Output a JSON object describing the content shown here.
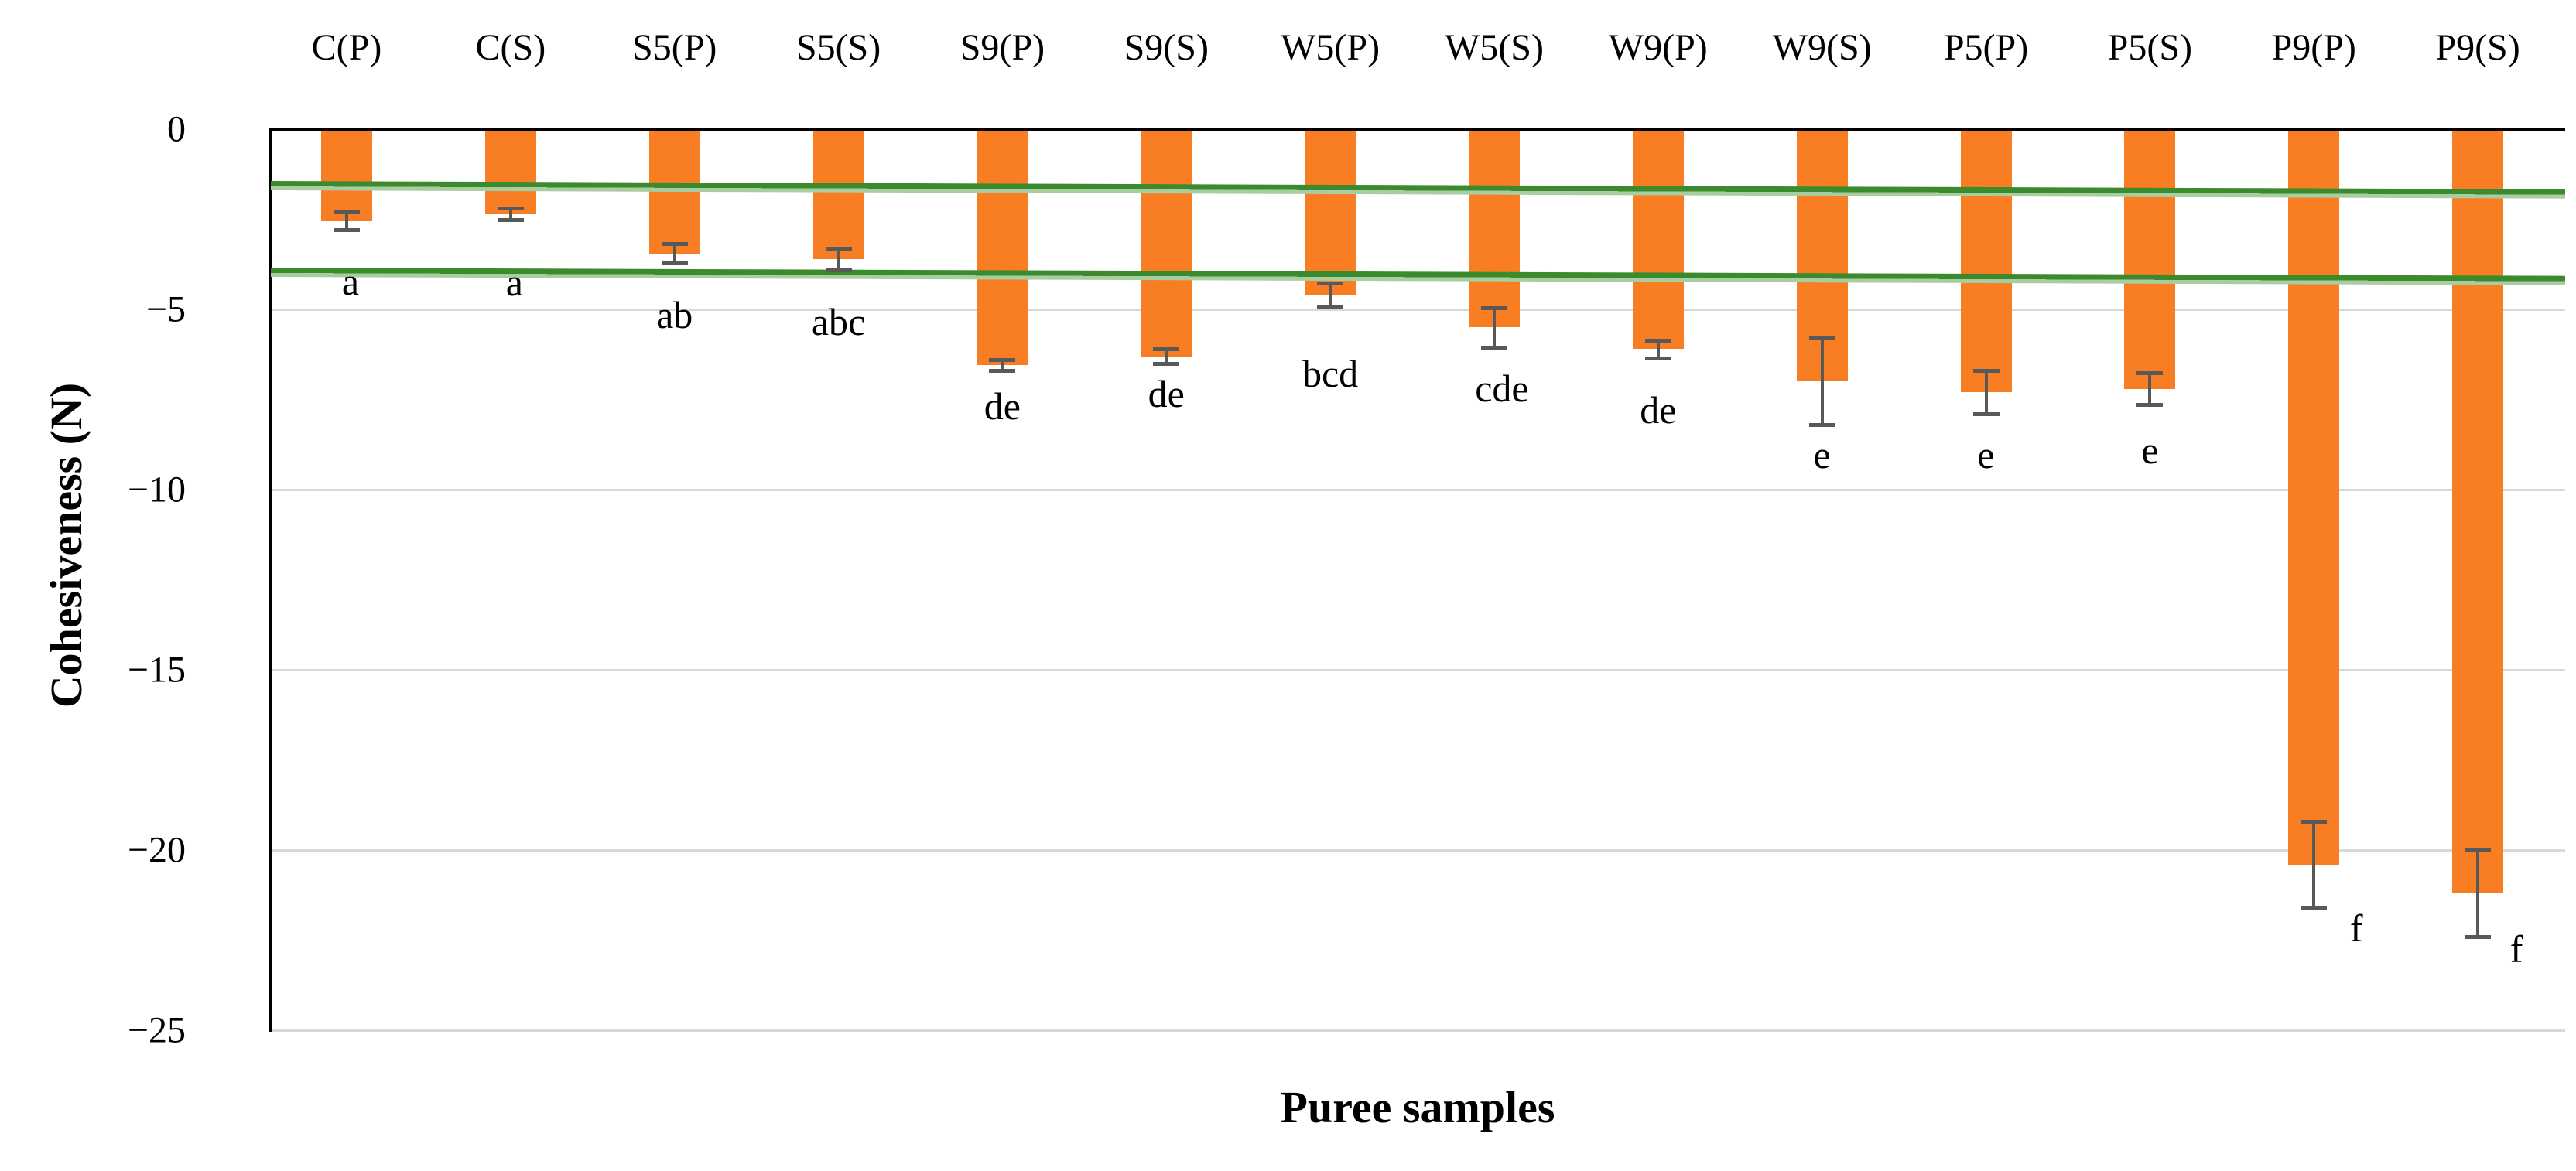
{
  "figure": {
    "xlabel": "Puree samples",
    "ylabel": "Cohesiveness (N)"
  },
  "chart_data": {
    "type": "bar",
    "title": "",
    "xlabel": "Puree samples",
    "ylabel": "Cohesiveness (N)",
    "categories": [
      "C(P)",
      "C(S)",
      "S5(P)",
      "S5(S)",
      "S9(P)",
      "S9(S)",
      "W5(P)",
      "W5(S)",
      "W9(P)",
      "W9(S)",
      "P5(P)",
      "P5(S)",
      "P9(P)",
      "P9(S)"
    ],
    "values": [
      -2.55,
      -2.35,
      -3.45,
      -3.6,
      -6.55,
      -6.3,
      -4.6,
      -5.5,
      -6.1,
      -7.0,
      -7.3,
      -7.2,
      -20.4,
      -21.2
    ],
    "errors": [
      0.25,
      0.17,
      0.27,
      0.3,
      0.15,
      0.2,
      0.32,
      0.55,
      0.25,
      1.2,
      0.6,
      0.45,
      1.2,
      1.2
    ],
    "sig_letters": [
      "a",
      "a",
      "ab",
      "abc",
      "de",
      "de",
      "bcd",
      "cde",
      "de",
      "e",
      "e",
      "e",
      "f",
      "f"
    ],
    "letter_dx": [
      5,
      5,
      0,
      0,
      0,
      0,
      0,
      10,
      0,
      0,
      0,
      0,
      55,
      50
    ],
    "letter_dy": [
      16,
      30,
      16,
      16,
      -5,
      -12,
      36,
      2,
      16,
      -12,
      2,
      8,
      -25,
      -35
    ],
    "ylim": [
      -25,
      0
    ],
    "yticks": [
      0,
      -5,
      -10,
      -15,
      -20,
      -25
    ],
    "grid": "horizontal-light-gray",
    "legend": null,
    "reference_lines": [
      {
        "name": "upper-green-threshold",
        "y_start": -1.52,
        "y_end": -1.75
      },
      {
        "name": "lower-green-threshold",
        "y_start": -3.92,
        "y_end": -4.15
      }
    ],
    "colors": {
      "bar": "#F97D23",
      "error_bar": "#595959",
      "gridline": "#D9D9D9",
      "axis": "#000000",
      "reference_dark": "#3B8A2D",
      "reference_light": "#A8CDA0"
    }
  }
}
